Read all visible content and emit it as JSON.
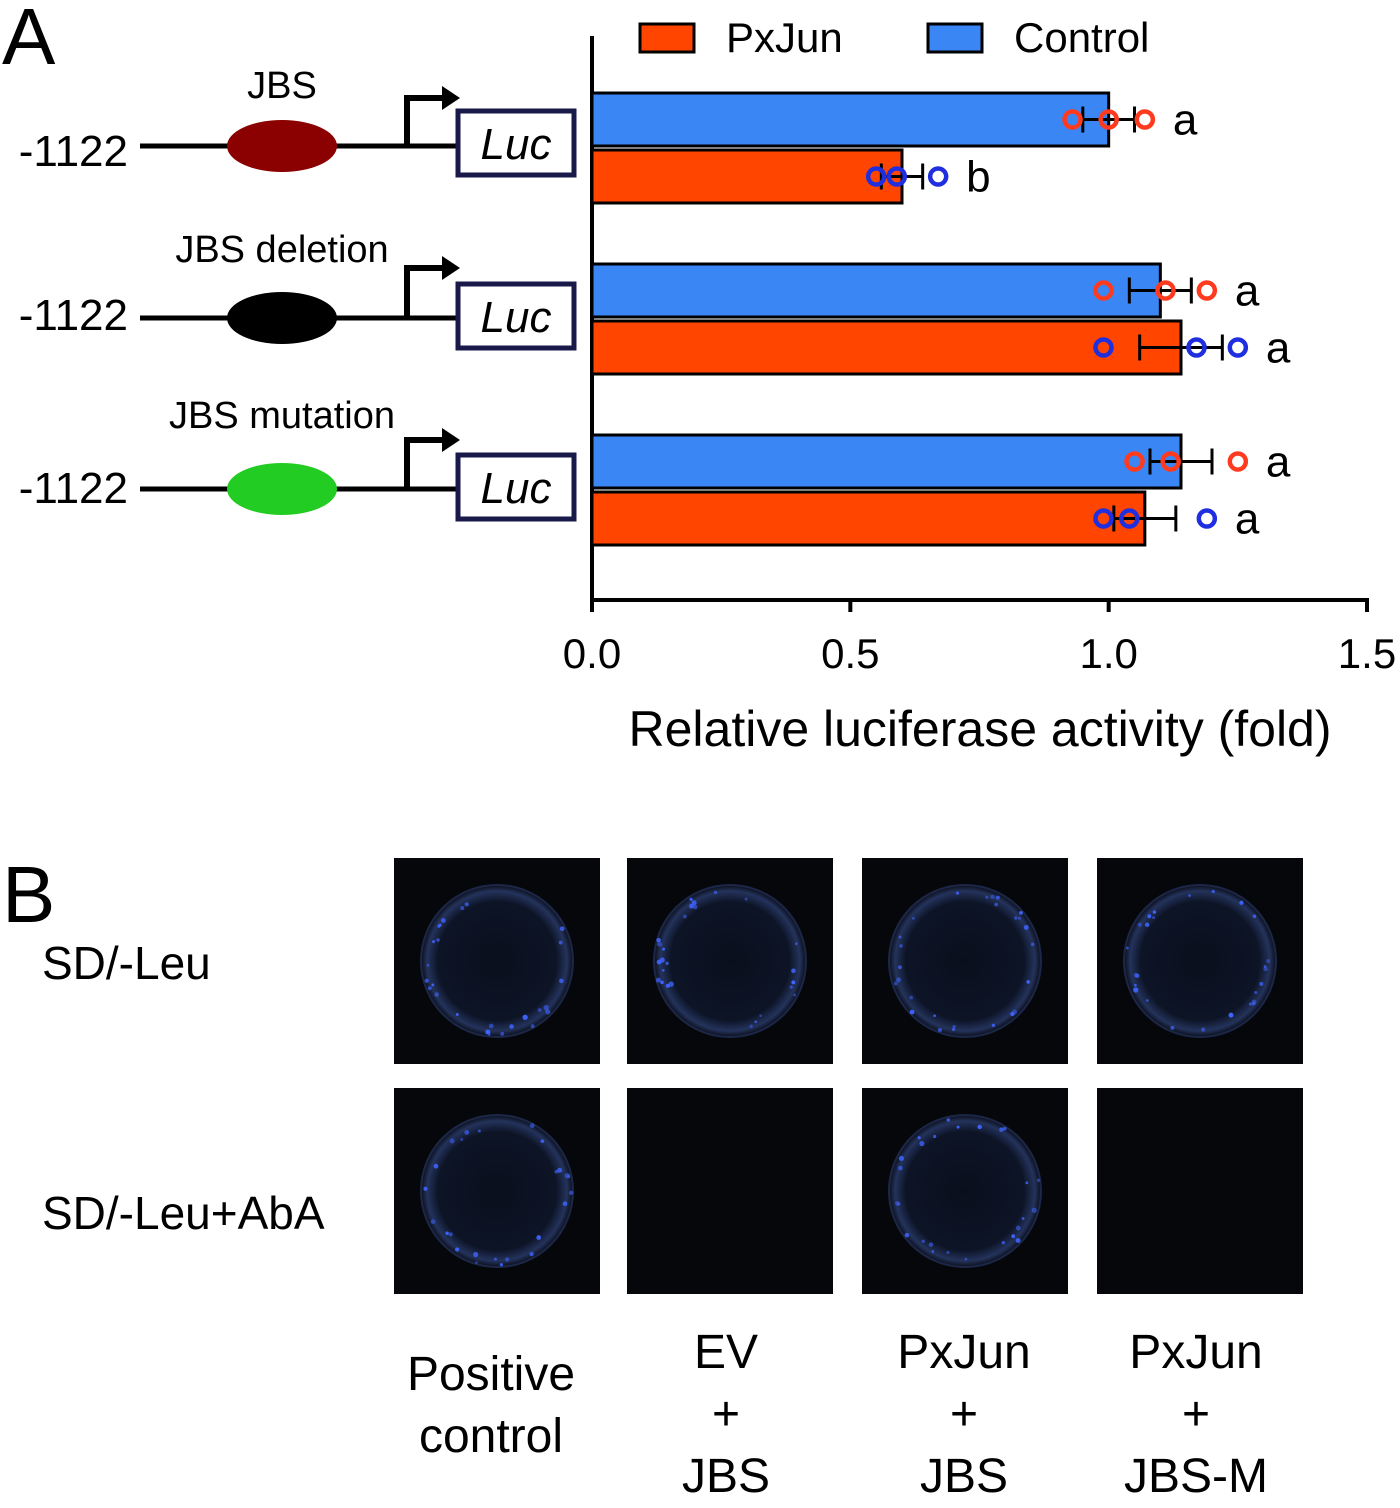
{
  "panelA": {
    "letter": "A",
    "constructs": [
      {
        "position": "-1122",
        "site_label": "JBS",
        "site_color": "#8B0000",
        "reporter": "Luc"
      },
      {
        "position": "-1122",
        "site_label": "JBS deletion",
        "site_color": "#000000",
        "reporter": "Luc"
      },
      {
        "position": "-1122",
        "site_label": "JBS mutation",
        "site_color": "#22CC22",
        "reporter": "Luc"
      }
    ]
  },
  "chart_data": {
    "type": "bar",
    "orientation": "horizontal",
    "xlabel": "Relative luciferase activity (fold)",
    "xlim": [
      0.0,
      1.5
    ],
    "xticks": [
      "0.0",
      "0.5",
      "1.0",
      "1.5"
    ],
    "legend": [
      {
        "name": "PxJun",
        "color": "#FF4500"
      },
      {
        "name": "Control",
        "color": "#3A86F5"
      }
    ],
    "legend_position": "top",
    "groups": [
      {
        "construct": "JBS",
        "bars": [
          {
            "series": "Control",
            "value": 1.0,
            "error": 0.05,
            "points": [
              0.93,
              1.0,
              1.07
            ],
            "letter": "a"
          },
          {
            "series": "PxJun",
            "value": 0.6,
            "error": 0.04,
            "points": [
              0.55,
              0.59,
              0.67
            ],
            "letter": "b"
          }
        ]
      },
      {
        "construct": "JBS deletion",
        "bars": [
          {
            "series": "Control",
            "value": 1.1,
            "error": 0.06,
            "points": [
              0.99,
              1.11,
              1.19
            ],
            "letter": "a"
          },
          {
            "series": "PxJun",
            "value": 1.14,
            "error": 0.08,
            "points": [
              0.99,
              1.17,
              1.25
            ],
            "letter": "a"
          }
        ]
      },
      {
        "construct": "JBS mutation",
        "bars": [
          {
            "series": "Control",
            "value": 1.14,
            "error": 0.06,
            "points": [
              1.05,
              1.12,
              1.25
            ],
            "letter": "a"
          },
          {
            "series": "PxJun",
            "value": 1.07,
            "error": 0.06,
            "points": [
              0.99,
              1.04,
              1.19
            ],
            "letter": "a"
          }
        ]
      }
    ],
    "point_colors": {
      "on_Control": "#FF3B1F",
      "on_PxJun": "#1F2FE0"
    }
  },
  "panelB": {
    "letter": "B",
    "row_labels": [
      "SD/-Leu",
      "SD/-Leu+AbA"
    ],
    "columns": [
      {
        "line1": "Positive",
        "line2": "control",
        "line3": ""
      },
      {
        "line1": "EV",
        "line2": "+",
        "line3": "JBS"
      },
      {
        "line1": "PxJun",
        "line2": "+",
        "line3": "JBS"
      },
      {
        "line1": "PxJun",
        "line2": "+",
        "line3": "JBS-M"
      }
    ],
    "colony_growth": [
      [
        1,
        1,
        1,
        1
      ],
      [
        1,
        0,
        1,
        0
      ]
    ]
  }
}
